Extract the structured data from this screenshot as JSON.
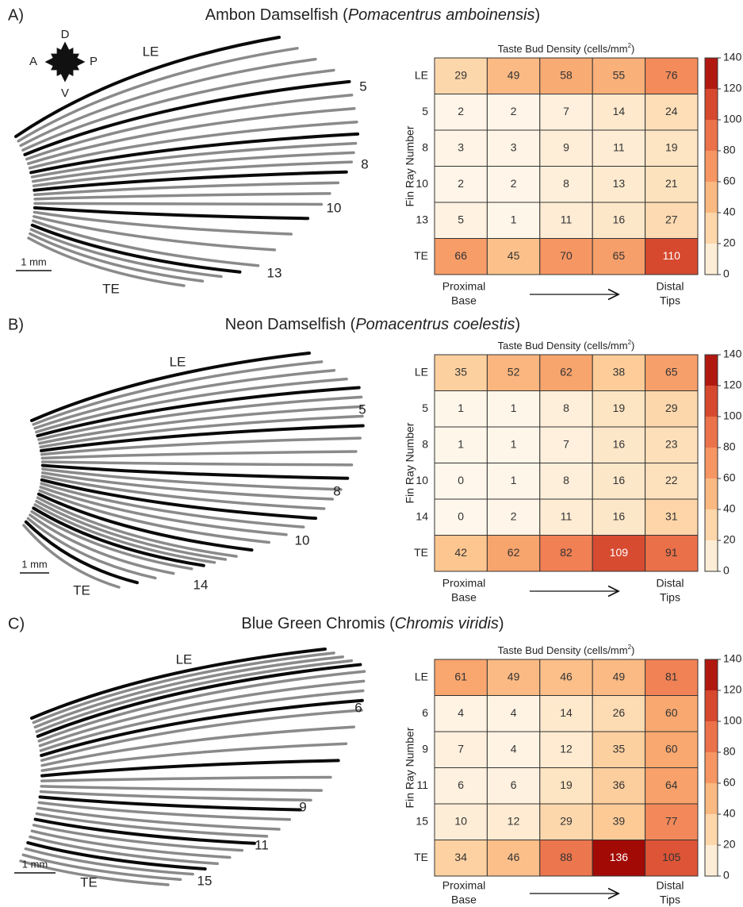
{
  "chart_data": [
    {
      "type": "heatmap",
      "panel": "A)",
      "title_name": "Ambon Damselfish (",
      "title_species": "Pomacentrus amboinensis",
      "title_close": ")",
      "heatmap_title": "Taste Bud Density (cells/mm",
      "heatmap_title_sup": "2",
      "heatmap_title_close": ")",
      "y_label": "Fin Ray Number",
      "rows": [
        "LE",
        "5",
        "8",
        "10",
        "13",
        "TE"
      ],
      "values": [
        [
          29,
          49,
          58,
          55,
          76
        ],
        [
          2,
          2,
          7,
          14,
          24
        ],
        [
          3,
          3,
          9,
          11,
          19
        ],
        [
          2,
          2,
          8,
          13,
          21
        ],
        [
          5,
          1,
          11,
          16,
          27
        ],
        [
          66,
          45,
          70,
          65,
          110
        ]
      ],
      "x_start": [
        "Proximal",
        "Base"
      ],
      "x_end": [
        "Distal",
        "Tips"
      ],
      "zlim": [
        0,
        140
      ],
      "zticks": [
        0,
        20,
        40,
        60,
        80,
        100,
        120,
        140
      ],
      "colormap": [
        "#fff7ec",
        "#fde3c0",
        "#fdc994",
        "#f9a870",
        "#f28456",
        "#e4603f",
        "#c8311f",
        "#990000"
      ],
      "fin": {
        "leading_edge": "LE",
        "trailing_edge": "TE",
        "ray_labels": [
          "5",
          "8",
          "10",
          "13"
        ],
        "scale_bar": "1 mm"
      },
      "compass": {
        "up": "D",
        "down": "V",
        "left": "A",
        "right": "P"
      }
    },
    {
      "type": "heatmap",
      "panel": "B)",
      "title_name": "Neon Damselfish (",
      "title_species": "Pomacentrus coelestis",
      "title_close": ")",
      "heatmap_title": "Taste Bud Density (cells/mm",
      "heatmap_title_sup": "2",
      "heatmap_title_close": ")",
      "y_label": "Fin Ray Number",
      "rows": [
        "LE",
        "5",
        "8",
        "10",
        "14",
        "TE"
      ],
      "values": [
        [
          35,
          52,
          62,
          38,
          65
        ],
        [
          1,
          1,
          8,
          19,
          29
        ],
        [
          1,
          1,
          7,
          16,
          23
        ],
        [
          0,
          1,
          8,
          16,
          22
        ],
        [
          0,
          2,
          11,
          16,
          31
        ],
        [
          42,
          62,
          82,
          109,
          91
        ]
      ],
      "x_start": [
        "Proximal",
        "Base"
      ],
      "x_end": [
        "Distal",
        "Tips"
      ],
      "zlim": [
        0,
        140
      ],
      "zticks": [
        0,
        20,
        40,
        60,
        80,
        100,
        120,
        140
      ],
      "colormap": [
        "#fff7ec",
        "#fde3c0",
        "#fdc994",
        "#f9a870",
        "#f28456",
        "#e4603f",
        "#c8311f",
        "#990000"
      ],
      "fin": {
        "leading_edge": "LE",
        "trailing_edge": "TE",
        "ray_labels": [
          "5",
          "8",
          "10",
          "14"
        ],
        "scale_bar": "1 mm"
      }
    },
    {
      "type": "heatmap",
      "panel": "C)",
      "title_name": "Blue Green Chromis (",
      "title_species": "Chromis viridis",
      "title_close": ")",
      "heatmap_title": "Taste Bud Density (cells/mm",
      "heatmap_title_sup": "2",
      "heatmap_title_close": ")",
      "y_label": "Fin Ray Number",
      "rows": [
        "LE",
        "6",
        "9",
        "11",
        "15",
        "TE"
      ],
      "values": [
        [
          61,
          49,
          46,
          49,
          81
        ],
        [
          4,
          4,
          14,
          26,
          60
        ],
        [
          7,
          4,
          12,
          35,
          60
        ],
        [
          6,
          6,
          19,
          36,
          64
        ],
        [
          10,
          12,
          29,
          39,
          77
        ],
        [
          34,
          46,
          88,
          136,
          105
        ]
      ],
      "x_start": [
        "Proximal",
        "Base"
      ],
      "x_end": [
        "Distal",
        "Tips"
      ],
      "zlim": [
        0,
        140
      ],
      "zticks": [
        0,
        20,
        40,
        60,
        80,
        100,
        120,
        140
      ],
      "colormap": [
        "#fff7ec",
        "#fde3c0",
        "#fdc994",
        "#f9a870",
        "#f28456",
        "#e4603f",
        "#c8311f",
        "#990000"
      ],
      "fin": {
        "leading_edge": "LE",
        "trailing_edge": "TE",
        "ray_labels": [
          "6",
          "9",
          "11",
          "15"
        ],
        "scale_bar": "1 mm"
      }
    }
  ]
}
